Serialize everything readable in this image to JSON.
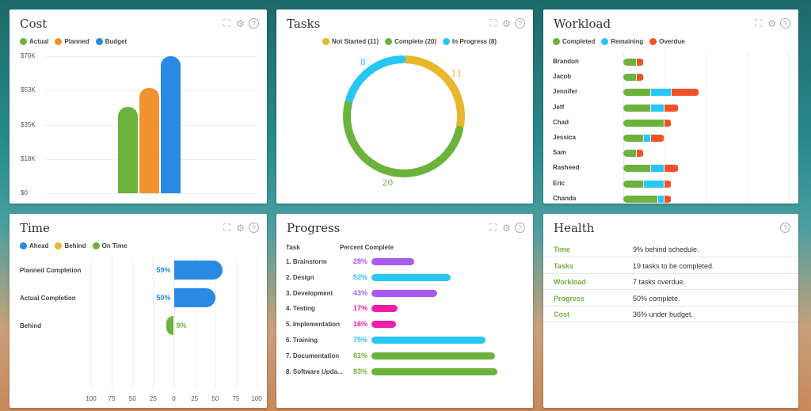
{
  "colors": {
    "green": "#6cb33e",
    "orange": "#f0922f",
    "blue": "#2a8ae3",
    "yellow": "#e8b72c",
    "cyan": "#27c6f5",
    "red": "#f0532a",
    "purple": "#a75cf0",
    "pink": "#f21eab"
  },
  "cost": {
    "title": "Cost",
    "legend": [
      "Actual",
      "Planned",
      "Budget"
    ],
    "chart_data": {
      "type": "bar",
      "categories": [
        "Actual",
        "Planned",
        "Budget"
      ],
      "values": [
        44000,
        54000,
        70000
      ],
      "yticks": [
        "$0",
        "$18K",
        "$35K",
        "$53K",
        "$70K"
      ],
      "ylim": [
        0,
        70000
      ],
      "grid": true,
      "legend": "top-left"
    }
  },
  "tasks": {
    "title": "Tasks",
    "legend": [
      "Not Started (11)",
      "Complete (20)",
      "In Progress (8)"
    ],
    "chart_data": {
      "type": "pie",
      "donut": true,
      "labels": [
        "Not Started",
        "Complete",
        "In Progress"
      ],
      "values": [
        11,
        20,
        8
      ],
      "data_labels": [
        "11",
        "20",
        "8"
      ]
    }
  },
  "workload": {
    "title": "Workload",
    "legend": [
      "Completed",
      "Remaining",
      "Overdue"
    ],
    "chart_data": {
      "type": "bar",
      "orientation": "horizontal",
      "stacked": true,
      "categories": [
        "Brandon",
        "Jacob",
        "Jennifer",
        "Jeff",
        "Chad",
        "Jessica",
        "Sam",
        "Rasheed",
        "Eric",
        "Chanda"
      ],
      "series": [
        {
          "name": "Completed",
          "values": [
            2,
            2,
            4,
            4,
            6,
            3,
            2,
            4,
            3,
            5
          ]
        },
        {
          "name": "Remaining",
          "values": [
            0,
            0,
            3,
            2,
            0,
            1,
            0,
            2,
            3,
            1
          ]
        },
        {
          "name": "Overdue",
          "values": [
            1,
            1,
            4,
            2,
            1,
            2,
            1,
            2,
            1,
            1
          ]
        }
      ],
      "grid": true
    }
  },
  "time": {
    "title": "Time",
    "legend": [
      "Ahead",
      "Behind",
      "On Time"
    ],
    "chart_data": {
      "type": "bar",
      "orientation": "horizontal",
      "categories": [
        "Planned Completion",
        "Actual Completion",
        "Behind"
      ],
      "values": [
        59,
        50,
        -9
      ],
      "data_labels": [
        "59%",
        "50%",
        "9%"
      ],
      "xticks": [
        "100",
        "75",
        "50",
        "25",
        "0",
        "25",
        "50",
        "75",
        "100"
      ],
      "xlim": [
        -100,
        100
      ],
      "grid": true
    }
  },
  "progress": {
    "title": "Progress",
    "col_task": "Task",
    "col_pct": "Percent Complete",
    "chart_data": {
      "type": "bar",
      "orientation": "horizontal",
      "categories": [
        "1. Brainstorm",
        "2. Design",
        "3. Development",
        "4. Testing",
        "5. Implementation",
        "6. Training",
        "7. Documentation",
        "8. Software Upda..."
      ],
      "values": [
        28,
        52,
        43,
        17,
        16,
        75,
        81,
        83
      ],
      "data_labels": [
        "28%",
        "52%",
        "43%",
        "17%",
        "16%",
        "75%",
        "81%",
        "83%"
      ]
    }
  },
  "health": {
    "title": "Health",
    "rows": [
      {
        "k": "Time",
        "v": "9% behind schedule."
      },
      {
        "k": "Tasks",
        "v": "19 tasks to be completed."
      },
      {
        "k": "Workload",
        "v": "7 tasks overdue."
      },
      {
        "k": "Progress",
        "v": "50% complete."
      },
      {
        "k": "Cost",
        "v": "36% under budget."
      }
    ]
  },
  "icons": {
    "expand": "expand-icon",
    "settings": "gear-icon",
    "help": "help-icon",
    "help_glyph": "?",
    "settings_glyph": "⚙",
    "expand_glyph": "⛶"
  }
}
